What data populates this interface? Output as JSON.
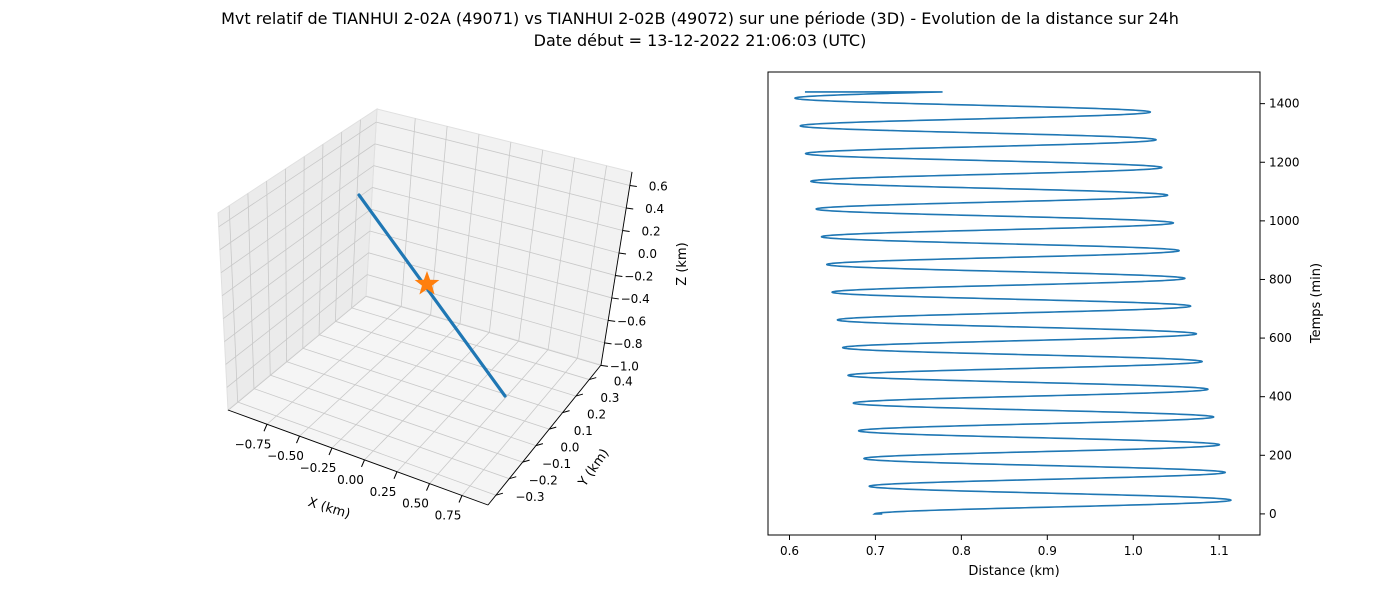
{
  "title": "Mvt relatif de TIANHUI 2-02A (49071) vs TIANHUI 2-02B (49072) sur une période (3D) - Evolution de la distance sur 24h",
  "subtitle": "Date début = 13-12-2022 21:06:03 (UTC)",
  "chart_data": [
    {
      "type": "line3d",
      "xlabel": "X (km)",
      "ylabel": "Y (km)",
      "zlabel": "Z (km)",
      "xticks": [
        "−0.75",
        "−0.50",
        "−0.25",
        "0.00",
        "0.25",
        "0.50",
        "0.75"
      ],
      "yticks": [
        "−0.3",
        "−0.2",
        "−0.1",
        "0.0",
        "0.1",
        "0.2",
        "0.3",
        "0.4"
      ],
      "zticks": [
        "0.6",
        "0.4",
        "0.2",
        "0.0",
        "−0.2",
        "−0.4",
        "−0.6",
        "−0.8",
        "−1.0"
      ],
      "xlim": [
        -0.9,
        0.9
      ],
      "ylim": [
        -0.35,
        0.45
      ],
      "zlim": [
        -1.05,
        0.65
      ],
      "grid": true,
      "line_color": "#1f77b4",
      "marker_color": "#ff7f0e",
      "marker": "star",
      "marker_point": {
        "x": 0.0,
        "y": 0.0,
        "z": 0.0
      },
      "segment": {
        "start": {
          "x": -0.72,
          "y": 0.12,
          "z": 0.55
        },
        "end": {
          "x": 0.72,
          "y": -0.12,
          "z": -0.55
        }
      }
    },
    {
      "type": "line",
      "xlabel": "Distance (km)",
      "ylabel": "Temps (min)",
      "xlim": [
        0.575,
        1.1475
      ],
      "ylim": [
        -72,
        1508
      ],
      "xticks": [
        "0.6",
        "0.7",
        "0.8",
        "0.9",
        "1.0",
        "1.1"
      ],
      "yticks": [
        "0",
        "200",
        "400",
        "600",
        "800",
        "1000",
        "1200",
        "1400"
      ],
      "line_color": "#1f77b4",
      "oscillation": {
        "t_start": 0,
        "t_end": 1440,
        "period_min": 94.6,
        "first_max_time": 47,
        "center_start": 0.908,
        "center_end": 0.81,
        "amplitude_start": 0.209,
        "amplitude_end": 0.205,
        "start_distance": 0.708,
        "end_distance": 0.618
      }
    }
  ]
}
